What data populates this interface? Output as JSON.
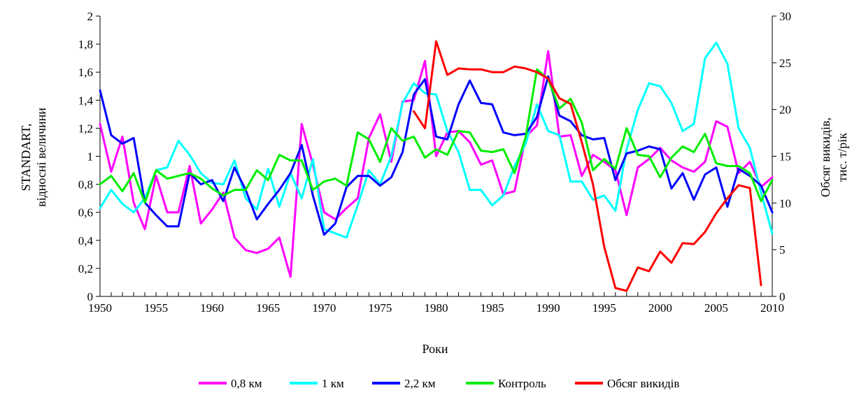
{
  "chart_data": {
    "type": "line",
    "xlabel": "Роки",
    "ylabel_left": [
      "STANDART,",
      "відносні величини"
    ],
    "ylabel_right": [
      "Обсяг викидів,",
      "тис. т/рік"
    ],
    "x_range": [
      1950,
      2010
    ],
    "x_ticks": [
      1950,
      1955,
      1960,
      1965,
      1970,
      1975,
      1980,
      1985,
      1990,
      1995,
      2000,
      2005,
      2010
    ],
    "y_left_range": [
      0,
      2
    ],
    "y_left_ticks": [
      "0",
      "0,2",
      "0,4",
      "0,6",
      "0,8",
      "1",
      "1,2",
      "1,4",
      "1,6",
      "1,8",
      "2"
    ],
    "y_right_range": [
      0,
      30
    ],
    "y_right_ticks": [
      "0",
      "5",
      "10",
      "15",
      "20",
      "25",
      "30"
    ],
    "legend_position": "bottom",
    "grid": false,
    "series": [
      {
        "name": "0,8 км",
        "color": "#ff00ff",
        "axis": "left",
        "x_start": 1950,
        "values": [
          1.23,
          0.89,
          1.14,
          0.67,
          0.48,
          0.86,
          0.6,
          0.6,
          0.93,
          0.52,
          0.62,
          0.74,
          0.42,
          0.33,
          0.31,
          0.34,
          0.42,
          0.14,
          1.23,
          0.94,
          0.6,
          0.55,
          0.63,
          0.7,
          1.13,
          1.3,
          0.96,
          1.39,
          1.4,
          1.68,
          1.0,
          1.17,
          1.18,
          1.1,
          0.94,
          0.97,
          0.73,
          0.75,
          1.14,
          1.22,
          1.75,
          1.14,
          1.15,
          0.86,
          1.01,
          0.96,
          0.9,
          0.58,
          0.92,
          0.98,
          1.06,
          0.97,
          0.92,
          0.89,
          0.96,
          1.25,
          1.21,
          0.88,
          0.96,
          0.78,
          0.85
        ]
      },
      {
        "name": "1 км",
        "color": "#00ffff",
        "axis": "left",
        "x_start": 1950,
        "values": [
          0.63,
          0.76,
          0.66,
          0.6,
          0.7,
          0.9,
          0.92,
          1.11,
          1.01,
          0.88,
          0.81,
          0.8,
          0.97,
          0.7,
          0.62,
          0.91,
          0.64,
          0.88,
          0.7,
          0.98,
          0.48,
          0.45,
          0.42,
          0.65,
          0.9,
          0.8,
          1.0,
          1.38,
          1.52,
          1.45,
          1.44,
          1.18,
          1.03,
          0.76,
          0.76,
          0.65,
          0.72,
          0.93,
          1.09,
          1.37,
          1.18,
          1.15,
          0.82,
          0.82,
          0.69,
          0.72,
          0.61,
          1.05,
          1.33,
          1.52,
          1.5,
          1.38,
          1.18,
          1.23,
          1.7,
          1.81,
          1.66,
          1.2,
          1.06,
          0.74,
          0.45
        ]
      },
      {
        "name": "2,2 км",
        "color": "#0000ff",
        "axis": "left",
        "x_start": 1950,
        "values": [
          1.47,
          1.15,
          1.09,
          1.13,
          0.67,
          0.58,
          0.5,
          0.5,
          0.88,
          0.8,
          0.83,
          0.68,
          0.92,
          0.76,
          0.55,
          0.66,
          0.76,
          0.88,
          1.08,
          0.72,
          0.44,
          0.52,
          0.78,
          0.86,
          0.86,
          0.79,
          0.85,
          1.03,
          1.44,
          1.55,
          1.14,
          1.12,
          1.37,
          1.54,
          1.38,
          1.37,
          1.17,
          1.15,
          1.16,
          1.28,
          1.57,
          1.29,
          1.25,
          1.15,
          1.12,
          1.13,
          0.83,
          1.02,
          1.04,
          1.07,
          1.05,
          0.77,
          0.88,
          0.69,
          0.87,
          0.92,
          0.64,
          0.91,
          0.86,
          0.79,
          0.6
        ]
      },
      {
        "name": "Контроль",
        "color": "#00ee00",
        "axis": "left",
        "x_start": 1950,
        "values": [
          0.8,
          0.86,
          0.75,
          0.88,
          0.67,
          0.9,
          0.84,
          0.86,
          0.88,
          0.84,
          0.77,
          0.72,
          0.76,
          0.76,
          0.9,
          0.83,
          1.01,
          0.97,
          0.97,
          0.76,
          0.82,
          0.84,
          0.79,
          1.17,
          1.12,
          0.96,
          1.2,
          1.11,
          1.14,
          0.99,
          1.05,
          1.01,
          1.18,
          1.17,
          1.04,
          1.03,
          1.05,
          0.88,
          1.14,
          1.62,
          1.55,
          1.34,
          1.41,
          1.24,
          0.9,
          0.98,
          0.91,
          1.2,
          1.01,
          1.0,
          0.85,
          0.99,
          1.07,
          1.03,
          1.16,
          0.95,
          0.93,
          0.93,
          0.88,
          0.68,
          0.83
        ]
      },
      {
        "name": "Обсяг викидів",
        "color": "#ff0000",
        "axis": "right",
        "x_start": 1978,
        "values": [
          19.8,
          18.0,
          27.3,
          23.7,
          24.4,
          24.3,
          24.3,
          24.0,
          24.0,
          24.6,
          24.4,
          24.0,
          23.3,
          21.2,
          20.6,
          16.5,
          12.0,
          5.3,
          0.9,
          0.6,
          3.1,
          2.7,
          4.8,
          3.6,
          5.7,
          5.6,
          6.9,
          8.9,
          10.5,
          11.9,
          11.6,
          1.2
        ]
      }
    ]
  }
}
